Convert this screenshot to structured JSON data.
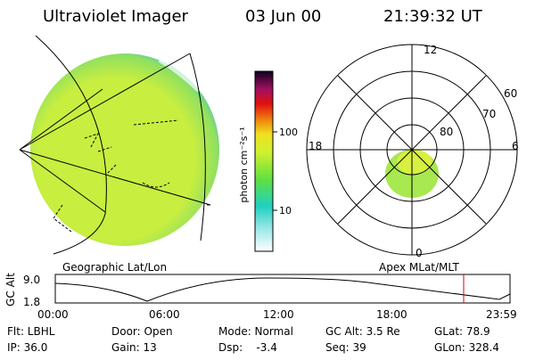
{
  "header": {
    "title": "Ultraviolet Imager",
    "date": "03 Jun 00",
    "time": "21:39:32 UT"
  },
  "colorbar": {
    "label": "photon cm⁻²s⁻¹",
    "ticks": [
      "100",
      "10"
    ]
  },
  "polar": {
    "mlt_labels": [
      "12",
      "18",
      "6",
      "0"
    ],
    "lat_labels": [
      "60",
      "70",
      "80"
    ]
  },
  "panels": {
    "left": "Geographic Lat/Lon",
    "right": "Apex MLat/MLT"
  },
  "orbit": {
    "y_label": "GC Alt",
    "y_ticks": [
      "9.0",
      "1.8"
    ],
    "x_ticks": [
      "00:00",
      "06:00",
      "12:00",
      "18:00",
      "23:59"
    ]
  },
  "info": [
    [
      "Flt: LBHL",
      "Door: Open",
      "Mode: Normal",
      "GC Alt: 3.5 Re",
      "GLat: 78.9"
    ],
    [
      "IP: 36.0",
      "Gain: 13",
      "Dsp:    -3.4",
      "Seq: 39",
      "GLon: 328.4"
    ]
  ]
}
